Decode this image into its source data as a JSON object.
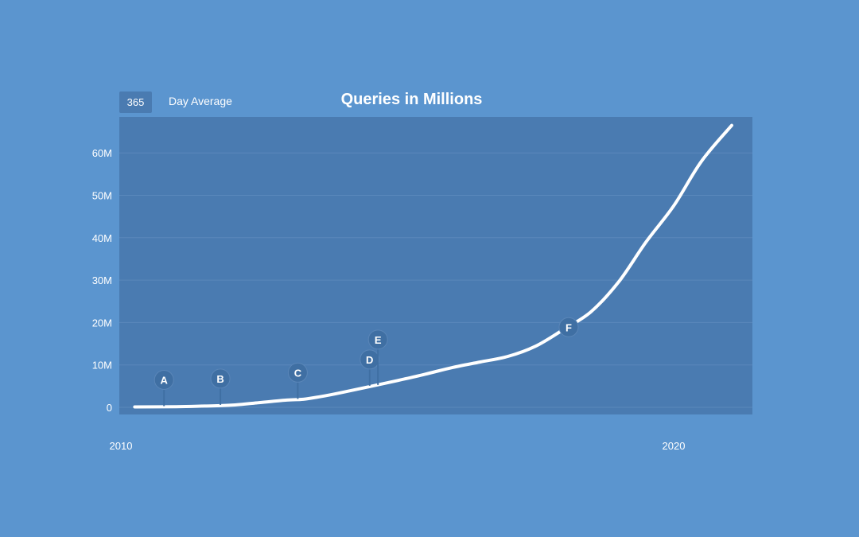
{
  "header": {
    "average_value": "365",
    "average_label": "Day Average"
  },
  "colors": {
    "page_background": "#5b95cf",
    "plot_background": "#4a7bb1",
    "line": "#ffffff",
    "marker": "#3f6fa3"
  },
  "chart_data": {
    "type": "line",
    "title": "Queries in Millions",
    "xlabel": "",
    "ylabel": "",
    "xlim": [
      2010,
      2021.3
    ],
    "ylim": [
      0,
      70
    ],
    "y_ticks": [
      {
        "value": 0,
        "label": "0"
      },
      {
        "value": 10,
        "label": "10M"
      },
      {
        "value": 20,
        "label": "20M"
      },
      {
        "value": 30,
        "label": "30M"
      },
      {
        "value": 40,
        "label": "40M"
      },
      {
        "value": 50,
        "label": "50M"
      },
      {
        "value": 60,
        "label": "60M"
      }
    ],
    "x_ticks": [
      {
        "value": 2010,
        "label": "2010"
      },
      {
        "value": 2020,
        "label": "2020"
      }
    ],
    "grid": true,
    "series": [
      {
        "x": [
          2010.25,
          2011.0,
          2011.5,
          2012.0,
          2012.5,
          2013.0,
          2013.3,
          2013.6,
          2014.0,
          2014.5,
          2015.0,
          2015.5,
          2016.0,
          2016.5,
          2017.0,
          2017.5,
          2018.0,
          2018.5,
          2019.0,
          2019.5,
          2020.0,
          2020.5,
          2021.05
        ],
        "y": [
          0.1,
          0.15,
          0.3,
          0.5,
          1.1,
          1.7,
          1.9,
          2.5,
          3.5,
          4.9,
          6.3,
          7.8,
          9.4,
          10.7,
          12.0,
          14.4,
          18.3,
          22.5,
          29.5,
          39.0,
          47.5,
          58.0,
          66.5
        ]
      }
    ],
    "annotations": [
      {
        "label": "A",
        "x": 2010.78,
        "y": 0.1
      },
      {
        "label": "B",
        "x": 2011.8,
        "y": 0.4
      },
      {
        "label": "C",
        "x": 2013.2,
        "y": 1.8
      },
      {
        "label": "D",
        "x": 2014.5,
        "y": 4.9
      },
      {
        "label": "E",
        "x": 2014.65,
        "y": 5.1
      },
      {
        "label": "F",
        "x": 2018.1,
        "y": 18.9
      }
    ]
  }
}
